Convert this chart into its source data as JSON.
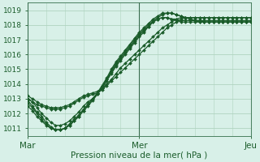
{
  "title": "",
  "xlabel": "Pression niveau de la mer( hPa )",
  "ylim": [
    1010.5,
    1019.5
  ],
  "xlim": [
    0,
    48
  ],
  "yticks": [
    1011,
    1012,
    1013,
    1014,
    1015,
    1016,
    1017,
    1018,
    1019
  ],
  "xticks": [
    0,
    24,
    48
  ],
  "xticklabels": [
    "Mar",
    "Mer",
    "Jeu"
  ],
  "bg_color": "#d8f0e8",
  "grid_color": "#b0d4c0",
  "line_color": "#1a5c2a",
  "marker": "D",
  "markersize": 2.0,
  "linewidth": 0.9,
  "series": [
    [
      1013.0,
      1012.8,
      1012.4,
      1012.0,
      1011.7,
      1011.4,
      1011.2,
      1011.2,
      1011.3,
      1011.5,
      1011.8,
      1012.1,
      1012.5,
      1012.8,
      1013.0,
      1013.3,
      1013.7,
      1014.2,
      1014.7,
      1015.2,
      1015.6,
      1016.0,
      1016.4,
      1016.8,
      1017.2,
      1017.5,
      1017.9,
      1018.2,
      1018.4,
      1018.5,
      1018.5,
      1018.4,
      1018.3,
      1018.2,
      1018.2,
      1018.2,
      1018.2,
      1018.2,
      1018.2,
      1018.2,
      1018.2,
      1018.2,
      1018.2,
      1018.2,
      1018.2,
      1018.2,
      1018.2,
      1018.2,
      1018.2
    ],
    [
      1012.9,
      1012.5,
      1012.1,
      1011.8,
      1011.4,
      1011.1,
      1010.9,
      1010.9,
      1011.0,
      1011.2,
      1011.5,
      1011.8,
      1012.2,
      1012.6,
      1013.0,
      1013.4,
      1013.8,
      1014.3,
      1014.8,
      1015.3,
      1015.7,
      1016.1,
      1016.5,
      1016.9,
      1017.3,
      1017.6,
      1017.9,
      1018.2,
      1018.4,
      1018.5,
      1018.5,
      1018.4,
      1018.4,
      1018.3,
      1018.3,
      1018.3,
      1018.3,
      1018.3,
      1018.3,
      1018.3,
      1018.3,
      1018.3,
      1018.3,
      1018.3,
      1018.3,
      1018.3,
      1018.3,
      1018.3,
      1018.3
    ],
    [
      1013.2,
      1013.0,
      1012.8,
      1012.6,
      1012.5,
      1012.4,
      1012.4,
      1012.4,
      1012.5,
      1012.6,
      1012.8,
      1013.0,
      1013.2,
      1013.3,
      1013.4,
      1013.5,
      1013.7,
      1014.0,
      1014.3,
      1014.7,
      1015.1,
      1015.4,
      1015.7,
      1016.0,
      1016.3,
      1016.6,
      1016.9,
      1017.2,
      1017.5,
      1017.8,
      1018.0,
      1018.2,
      1018.4,
      1018.5,
      1018.5,
      1018.5,
      1018.5,
      1018.5,
      1018.5,
      1018.5,
      1018.5,
      1018.5,
      1018.5,
      1018.5,
      1018.5,
      1018.5,
      1018.5,
      1018.5,
      1018.5
    ],
    [
      1013.0,
      1012.8,
      1012.6,
      1012.5,
      1012.4,
      1012.3,
      1012.3,
      1012.3,
      1012.4,
      1012.5,
      1012.7,
      1012.9,
      1013.1,
      1013.2,
      1013.3,
      1013.4,
      1013.6,
      1013.9,
      1014.2,
      1014.5,
      1014.8,
      1015.1,
      1015.4,
      1015.7,
      1016.0,
      1016.3,
      1016.6,
      1016.9,
      1017.2,
      1017.5,
      1017.8,
      1018.0,
      1018.2,
      1018.4,
      1018.5,
      1018.5,
      1018.5,
      1018.5,
      1018.5,
      1018.5,
      1018.5,
      1018.5,
      1018.5,
      1018.5,
      1018.5,
      1018.5,
      1018.5,
      1018.5,
      1018.5
    ],
    [
      1012.5,
      1012.2,
      1011.8,
      1011.5,
      1011.2,
      1011.0,
      1010.9,
      1010.9,
      1011.0,
      1011.2,
      1011.5,
      1011.8,
      1012.2,
      1012.5,
      1012.9,
      1013.3,
      1013.8,
      1014.3,
      1014.9,
      1015.4,
      1015.8,
      1016.2,
      1016.6,
      1017.0,
      1017.4,
      1017.7,
      1018.0,
      1018.3,
      1018.5,
      1018.7,
      1018.8,
      1018.8,
      1018.7,
      1018.6,
      1018.5,
      1018.4,
      1018.3,
      1018.3,
      1018.2,
      1018.2,
      1018.2,
      1018.2,
      1018.2,
      1018.2,
      1018.2,
      1018.2,
      1018.2,
      1018.2,
      1018.2
    ],
    [
      1012.7,
      1012.4,
      1012.0,
      1011.6,
      1011.3,
      1011.0,
      1010.9,
      1010.9,
      1011.0,
      1011.3,
      1011.6,
      1011.9,
      1012.3,
      1012.6,
      1013.0,
      1013.4,
      1013.9,
      1014.4,
      1015.0,
      1015.5,
      1015.9,
      1016.3,
      1016.7,
      1017.1,
      1017.5,
      1017.8,
      1018.1,
      1018.4,
      1018.6,
      1018.8,
      1018.8,
      1018.8,
      1018.7,
      1018.6,
      1018.5,
      1018.4,
      1018.3,
      1018.2,
      1018.2,
      1018.2,
      1018.2,
      1018.2,
      1018.2,
      1018.2,
      1018.2,
      1018.2,
      1018.2,
      1018.2,
      1018.2
    ]
  ]
}
